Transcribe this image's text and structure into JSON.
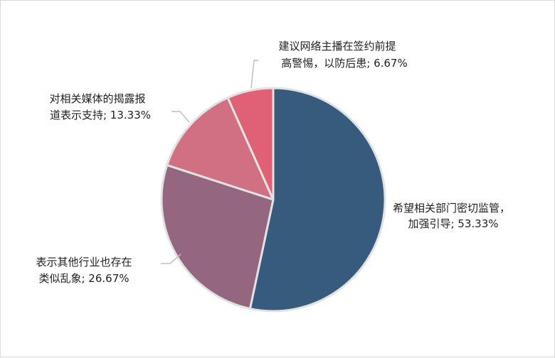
{
  "chart_data": {
    "type": "pie",
    "title": "",
    "slices": [
      {
        "lines": [
          "希望相关部门密切监管，",
          "加强引导; 53.33%"
        ],
        "value": 53.33,
        "color": "#365b7d"
      },
      {
        "lines": [
          "表示其他行业也存在",
          "类似乱象; 26.67%"
        ],
        "value": 26.67,
        "color": "#95667f"
      },
      {
        "lines": [
          "对相关媒体的揭露报",
          "道表示支持; 13.33%"
        ],
        "value": 13.33,
        "color": "#d17082"
      },
      {
        "lines": [
          "建议网络主播在签约前提",
          "高警惕，以防后患; 6.67%"
        ],
        "value": 6.67,
        "color": "#e06075"
      }
    ]
  }
}
